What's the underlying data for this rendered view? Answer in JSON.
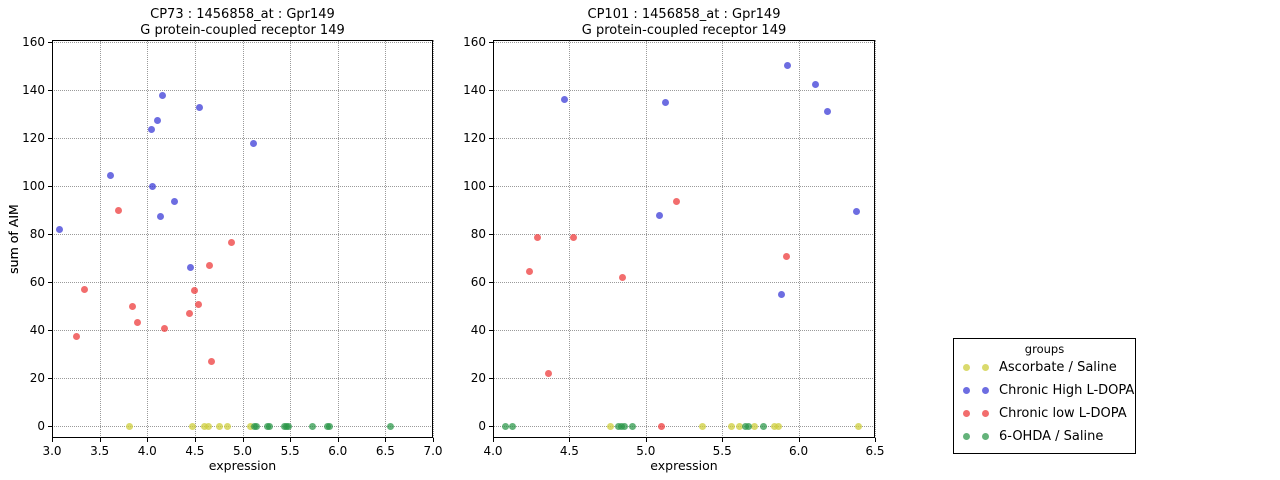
{
  "palette": {
    "ascorbate": "rgba(205,205,60,0.75)",
    "high_ldopa": "rgba(60,60,215,0.75)",
    "low_ldopa": "rgba(238,60,60,0.75)",
    "ohda": "rgba(40,150,70,0.72)",
    "grid": "#9a9a9a",
    "spine": "#000000",
    "background": "#ffffff"
  },
  "legend": {
    "title": "groups",
    "items": [
      {
        "label": "Ascorbate / Saline",
        "color_key": "ascorbate"
      },
      {
        "label": "Chronic High L-DOPA",
        "color_key": "high_ldopa"
      },
      {
        "label": "Chronic low L-DOPA",
        "color_key": "low_ldopa"
      },
      {
        "label": "6-OHDA / Saline",
        "color_key": "ohda"
      }
    ]
  },
  "chart_data": [
    {
      "type": "scatter",
      "title": "CP73 : 1456858_at : Gpr149",
      "subtitle": "G protein-coupled receptor 149",
      "xlabel": "expression",
      "ylabel": "sum of AIM",
      "xlim": [
        3.0,
        7.0
      ],
      "ylim": [
        -5,
        161
      ],
      "xticks": [
        3.0,
        3.5,
        4.0,
        4.5,
        5.0,
        5.5,
        6.0,
        6.5,
        7.0
      ],
      "yticks": [
        0,
        20,
        40,
        60,
        80,
        100,
        120,
        140,
        160
      ],
      "grid": true,
      "series": [
        {
          "name": "Ascorbate / Saline",
          "color_key": "ascorbate",
          "points": [
            [
              3.81,
              0
            ],
            [
              4.47,
              0
            ],
            [
              4.6,
              0
            ],
            [
              4.64,
              0
            ],
            [
              4.76,
              0
            ],
            [
              4.84,
              0
            ],
            [
              5.08,
              0
            ]
          ]
        },
        {
          "name": "Chronic High L-DOPA",
          "color_key": "high_ldopa",
          "points": [
            [
              3.08,
              82
            ],
            [
              3.61,
              104.5
            ],
            [
              4.04,
              123.5
            ],
            [
              4.06,
              100
            ],
            [
              4.11,
              127.5
            ],
            [
              4.14,
              87.5
            ],
            [
              4.16,
              138
            ],
            [
              4.29,
              93.5
            ],
            [
              4.45,
              66
            ],
            [
              4.55,
              133
            ],
            [
              5.12,
              118
            ]
          ]
        },
        {
          "name": "Chronic low L-DOPA",
          "color_key": "low_ldopa",
          "points": [
            [
              3.26,
              37.5
            ],
            [
              3.34,
              57
            ],
            [
              3.7,
              90
            ],
            [
              3.85,
              50
            ],
            [
              3.9,
              43
            ],
            [
              4.18,
              40.5
            ],
            [
              4.44,
              47
            ],
            [
              4.5,
              56.5
            ],
            [
              4.54,
              50.5
            ],
            [
              4.65,
              67
            ],
            [
              4.67,
              27
            ],
            [
              4.88,
              76.5
            ]
          ]
        },
        {
          "name": "6-OHDA / Saline",
          "color_key": "ohda",
          "points": [
            [
              5.13,
              0
            ],
            [
              5.15,
              0
            ],
            [
              5.26,
              0
            ],
            [
              5.28,
              0
            ],
            [
              5.44,
              0
            ],
            [
              5.46,
              0
            ],
            [
              5.48,
              0
            ],
            [
              5.74,
              0
            ],
            [
              5.89,
              0
            ],
            [
              5.91,
              0
            ],
            [
              6.55,
              0
            ]
          ]
        }
      ]
    },
    {
      "type": "scatter",
      "title": "CP101 : 1456858_at : Gpr149",
      "subtitle": "G protein-coupled receptor 149",
      "xlabel": "expression",
      "ylabel": "sum of AIM",
      "xlim": [
        4.0,
        6.5
      ],
      "ylim": [
        -5,
        161
      ],
      "xticks": [
        4.0,
        4.5,
        5.0,
        5.5,
        6.0,
        6.5
      ],
      "yticks": [
        0,
        20,
        40,
        60,
        80,
        100,
        120,
        140,
        160
      ],
      "grid": true,
      "series": [
        {
          "name": "Ascorbate / Saline",
          "color_key": "ascorbate",
          "points": [
            [
              4.77,
              0
            ],
            [
              5.37,
              0
            ],
            [
              5.56,
              0
            ],
            [
              5.61,
              0
            ],
            [
              5.71,
              0
            ],
            [
              5.84,
              0
            ],
            [
              5.87,
              0
            ],
            [
              6.39,
              0
            ]
          ]
        },
        {
          "name": "Chronic High L-DOPA",
          "color_key": "high_ldopa",
          "points": [
            [
              4.47,
              136
            ],
            [
              5.09,
              88
            ],
            [
              5.13,
              135
            ],
            [
              5.89,
              55
            ],
            [
              5.93,
              150.5
            ],
            [
              6.11,
              142.5
            ],
            [
              6.19,
              131
            ],
            [
              6.38,
              89.5
            ]
          ]
        },
        {
          "name": "Chronic low L-DOPA",
          "color_key": "low_ldopa",
          "points": [
            [
              4.24,
              64.5
            ],
            [
              4.29,
              78.5
            ],
            [
              4.36,
              22
            ],
            [
              4.53,
              78.5
            ],
            [
              4.85,
              62
            ],
            [
              5.1,
              0
            ],
            [
              5.2,
              93.5
            ],
            [
              5.92,
              70.5
            ]
          ]
        },
        {
          "name": "6-OHDA / Saline",
          "color_key": "ohda",
          "points": [
            [
              4.08,
              0
            ],
            [
              4.13,
              0
            ],
            [
              4.82,
              0
            ],
            [
              4.84,
              0
            ],
            [
              4.86,
              0
            ],
            [
              4.91,
              0
            ],
            [
              5.65,
              0
            ],
            [
              5.67,
              0
            ],
            [
              5.77,
              0
            ]
          ]
        }
      ]
    }
  ]
}
